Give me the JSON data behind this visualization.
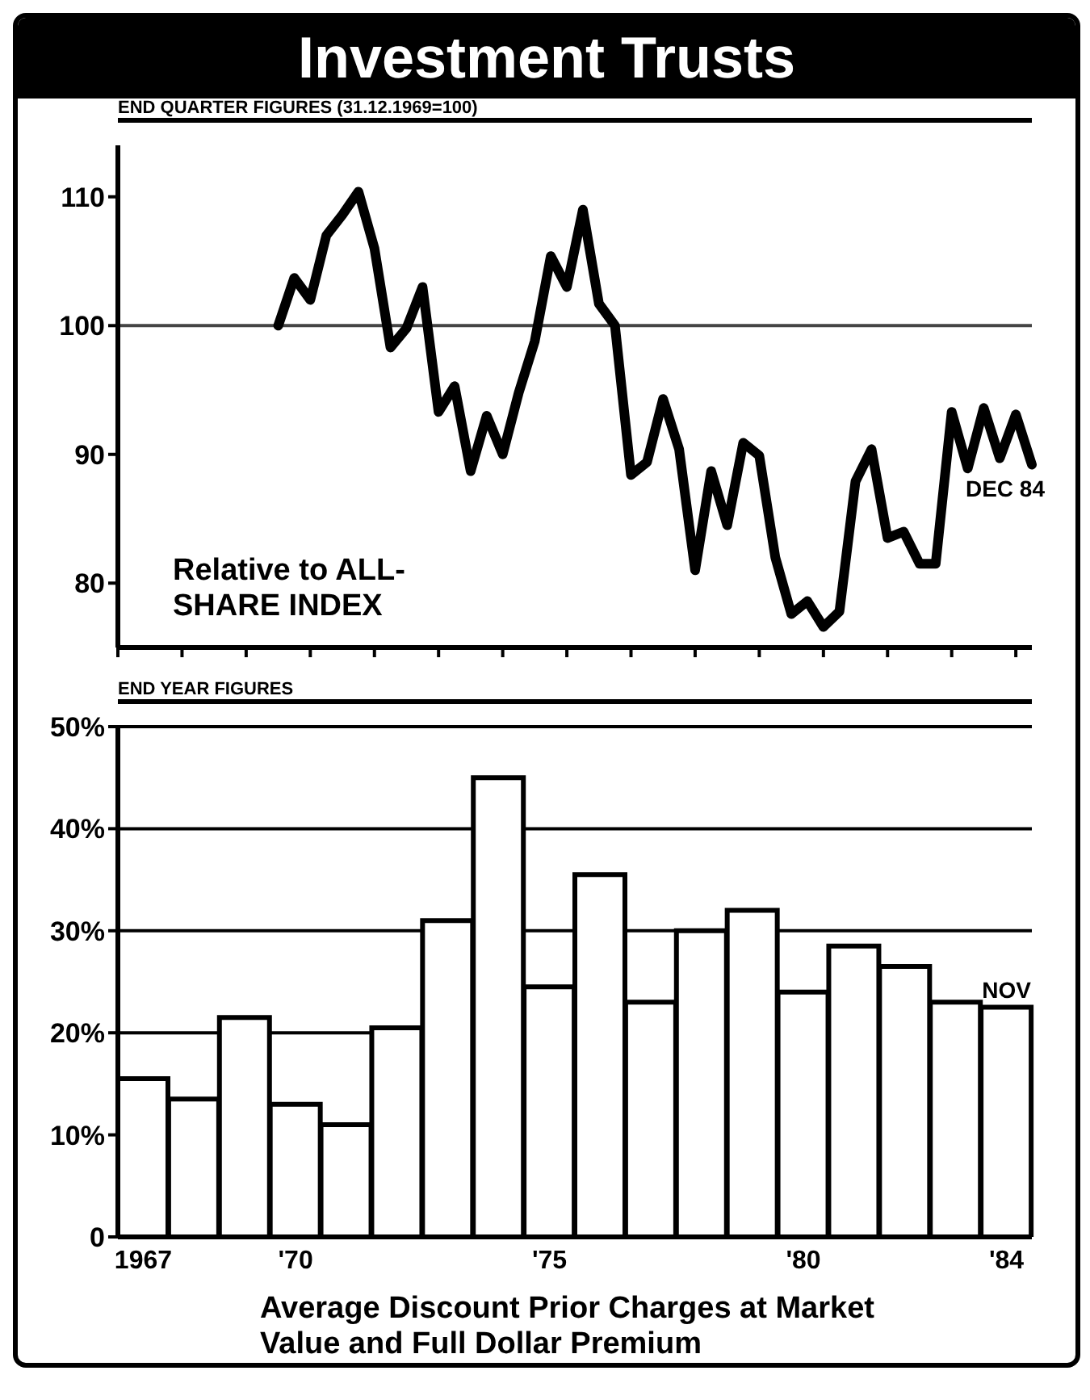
{
  "chart_data": [
    {
      "type": "line",
      "title": "Investment Trusts",
      "subtitle": "END QUARTER FIGURES (31.12.1969=100)",
      "annotations": [
        "Relative to ALL-SHARE INDEX",
        {
          "text": "DEC 84",
          "y": 89.2
        }
      ],
      "categories": [
        null,
        null,
        null,
        null,
        null,
        null,
        null,
        null,
        null,
        null,
        null,
        null,
        null,
        null,
        null,
        null,
        null,
        null,
        null,
        null,
        null,
        null,
        null,
        null,
        null,
        null,
        null,
        null,
        null,
        null,
        null,
        null,
        null,
        null,
        null,
        null,
        null,
        null,
        null,
        null,
        null,
        null,
        null,
        null,
        null,
        null,
        null,
        null,
        null,
        null,
        null,
        null,
        null,
        null,
        null,
        null,
        null,
        null
      ],
      "values": [
        null,
        null,
        null,
        null,
        null,
        null,
        null,
        null,
        null,
        null,
        100,
        103.7,
        102,
        107,
        108.6,
        110.4,
        106,
        98.3,
        99.8,
        103,
        93.3,
        95.3,
        88.7,
        93,
        90,
        94.8,
        98.8,
        105.4,
        103,
        109,
        101.7,
        100,
        88.4,
        89.4,
        94.3,
        90.4,
        81,
        88.7,
        84.5,
        90.9,
        89.9,
        82,
        77.6,
        78.6,
        76.6,
        77.8,
        87.9,
        90.4,
        83.5,
        84,
        81.5,
        81.5,
        93.3,
        88.9,
        93.6,
        89.7,
        93.1,
        89.2
      ],
      "color": "#000000",
      "marker": "none",
      "line_style": "solid",
      "ylim": [
        75,
        114
      ],
      "yticks": [
        80,
        90,
        100,
        110
      ],
      "ref_lines": [
        {
          "axis": "y",
          "value": 100,
          "label": null,
          "color": "#444444"
        }
      ],
      "tick_labels": "y"
    },
    {
      "type": "bar",
      "subtitle": "END YEAR FIGURES",
      "annotations": [
        "Average Discount Prior Charges at Market Value and Full Dollar Premium",
        {
          "text": "NOV",
          "x": "'84",
          "y": 22.5
        }
      ],
      "categories": [
        "1967",
        null,
        null,
        "'70",
        null,
        null,
        null,
        null,
        "'75",
        null,
        null,
        null,
        null,
        "'80",
        null,
        null,
        null,
        "'84"
      ],
      "values": [
        15.5,
        13.5,
        21.5,
        13,
        11,
        20.5,
        31,
        45,
        24.5,
        35.5,
        23,
        30,
        32,
        24,
        28.5,
        26.5,
        23,
        22.5
      ],
      "color": "#ffffff",
      "ylim": [
        0,
        50
      ],
      "yticks": [
        0,
        {
          "value": 10,
          "label": "10%"
        },
        {
          "value": 20,
          "label": "20%"
        },
        {
          "value": 30,
          "label": "30%"
        },
        {
          "value": 40,
          "label": "40%"
        },
        {
          "value": 50,
          "label": "50%"
        }
      ],
      "grid": "y"
    }
  ]
}
